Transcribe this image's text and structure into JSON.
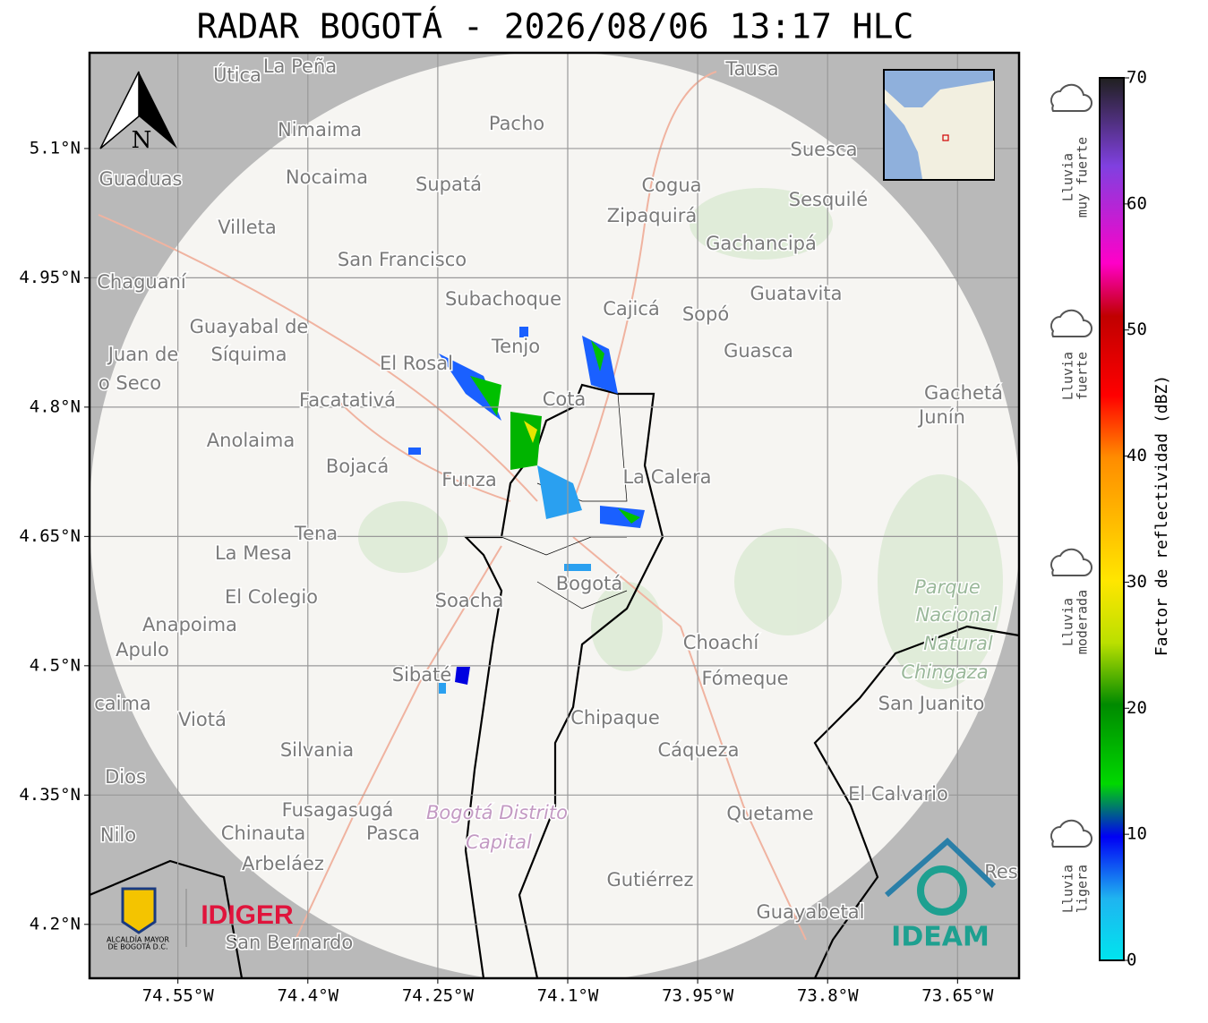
{
  "title": "RADAR BOGOTÁ - 2026/08/06 13:17 HLC",
  "map": {
    "xlim": [
      -74.652,
      -73.579
    ],
    "ylim": [
      4.1375,
      5.211
    ],
    "xticks": [
      {
        "value": -74.55,
        "label": "74.55°W"
      },
      {
        "value": -74.4,
        "label": "74.4°W"
      },
      {
        "value": -74.25,
        "label": "74.25°W"
      },
      {
        "value": -74.1,
        "label": "74.1°W"
      },
      {
        "value": -73.95,
        "label": "73.95°W"
      },
      {
        "value": -73.8,
        "label": "73.8°W"
      },
      {
        "value": -73.65,
        "label": "73.65°W"
      }
    ],
    "yticks": [
      {
        "value": 5.1,
        "label": "5.1°N"
      },
      {
        "value": 4.95,
        "label": "4.95°N"
      },
      {
        "value": 4.8,
        "label": "4.8°N"
      },
      {
        "value": 4.65,
        "label": "4.65°N"
      },
      {
        "value": 4.5,
        "label": "4.5°N"
      },
      {
        "value": 4.35,
        "label": "4.35°N"
      },
      {
        "value": 4.2,
        "label": "4.2°N"
      }
    ],
    "north": "N",
    "places": [
      "Útica",
      "La Peña",
      "Tausa",
      "Pacho",
      "Nimaima",
      "Suesca",
      "Guaduas",
      "Nocaima",
      "Supatá",
      "Cogua",
      "Sesquilé",
      "Zipaquirá",
      "Villeta",
      "Gachancipá",
      "San Francisco",
      "Chaguaní",
      "Guatavita",
      "Subachoque",
      "Cajicá",
      "Sopó",
      "Guayabal de",
      "Síquima",
      "Tenjo",
      "Guasca",
      "Juan de",
      "El Rosal",
      "o Seco",
      "Cota",
      "Gachetá",
      "Junín",
      "Facatativá",
      "Anolaima",
      "Bojacá",
      "Funza",
      "La Calera",
      "Tena",
      "La Mesa",
      "Bogotá",
      "El Colegio",
      "Soacha",
      "Anapoima",
      "Apulo",
      "Choachí",
      "Fómeque",
      "Sibaté",
      "San Juanito",
      "caima",
      "Viotá",
      "Chipaque",
      "Silvania",
      "Cáqueza",
      "Dios",
      "El Calvario",
      "Fusagasugá",
      "Quetame",
      "Nilo",
      "Chinauta",
      "Pasca",
      "Arbeláez",
      "Gutiérrez",
      "Guayabetal",
      "San Bernardo",
      "Res"
    ],
    "park": [
      "Parque",
      "Nacional",
      "Natural",
      "Chingaza"
    ],
    "district": [
      "Bogotá Distrito",
      "Capital"
    ],
    "logos": {
      "alcaldia": [
        "ALCALDÍA MAYOR",
        "DE BOGOTÁ D.C."
      ],
      "idiger": "IDIGER",
      "ideam": "IDEAM"
    }
  },
  "colorbar": {
    "label": "Factor de reflectividad (dBZ)",
    "lim": [
      0,
      70
    ],
    "ticks": [
      0,
      10,
      20,
      30,
      40,
      50,
      60,
      70
    ]
  },
  "rain_levels": [
    [
      "Lluvia",
      "muy fuerte"
    ],
    [
      "Lluvia",
      "fuerte"
    ],
    [
      "Lluvia",
      "moderada"
    ],
    [
      "Lluvia",
      "ligera"
    ]
  ]
}
